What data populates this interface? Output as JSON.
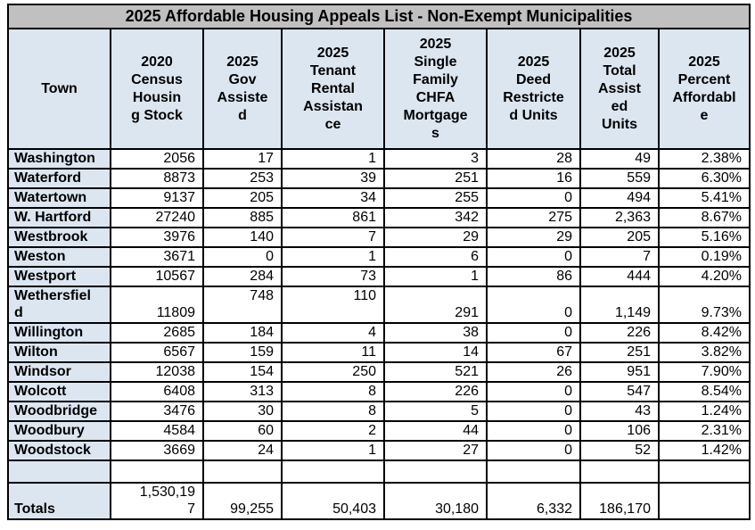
{
  "title": "2025 Affordable Housing Appeals List - Non-Exempt Municipalities",
  "table": {
    "columns": [
      {
        "label": "Town"
      },
      {
        "label": "2020\nCensus\nHousin\ng Stock"
      },
      {
        "label": "2025\nGov\nAssiste\nd"
      },
      {
        "label": "2025\nTenant\nRental\nAssistan\nce"
      },
      {
        "label": "2025\nSingle\nFamily\nCHFA\nMortgage\ns"
      },
      {
        "label": "2025\nDeed\nRestricte\nd Units"
      },
      {
        "label": "2025\nTotal\nAssist\ned\nUnits"
      },
      {
        "label": "2025\nPercent\nAffordabl\ne"
      }
    ],
    "rows": [
      {
        "town": "Washington",
        "values": [
          "2056",
          "17",
          "1",
          "3",
          "28",
          "49",
          "2.38%"
        ]
      },
      {
        "town": "Waterford",
        "values": [
          "8873",
          "253",
          "39",
          "251",
          "16",
          "559",
          "6.30%"
        ]
      },
      {
        "town": "Watertown",
        "values": [
          "9137",
          "205",
          "34",
          "255",
          "0",
          "494",
          "5.41%"
        ]
      },
      {
        "town": "W. Hartford",
        "values": [
          "27240",
          "885",
          "861",
          "342",
          "275",
          "2,363",
          "8.67%"
        ]
      },
      {
        "town": "Westbrook",
        "values": [
          "3976",
          "140",
          "7",
          "29",
          "29",
          "205",
          "5.16%"
        ]
      },
      {
        "town": "Weston",
        "values": [
          "3671",
          "0",
          "1",
          "6",
          "0",
          "7",
          "0.19%"
        ]
      },
      {
        "town": "Westport",
        "values": [
          "10567",
          "284",
          "73",
          "1",
          "86",
          "444",
          "4.20%"
        ]
      },
      {
        "town": "Wethersfiel\nd",
        "values": [
          "11809",
          "748",
          "110",
          "291",
          "0",
          "1,149",
          "9.73%"
        ]
      },
      {
        "town": "Willington",
        "values": [
          "2685",
          "184",
          "4",
          "38",
          "0",
          "226",
          "8.42%"
        ]
      },
      {
        "town": "Wilton",
        "values": [
          "6567",
          "159",
          "11",
          "14",
          "67",
          "251",
          "3.82%"
        ]
      },
      {
        "town": "Windsor",
        "values": [
          "12038",
          "154",
          "250",
          "521",
          "26",
          "951",
          "7.90%"
        ]
      },
      {
        "town": "Wolcott",
        "values": [
          "6408",
          "313",
          "8",
          "226",
          "0",
          "547",
          "8.54%"
        ]
      },
      {
        "town": "Woodbridge",
        "values": [
          "3476",
          "30",
          "8",
          "5",
          "0",
          "43",
          "1.24%"
        ]
      },
      {
        "town": "Woodbury",
        "values": [
          "4584",
          "60",
          "2",
          "44",
          "0",
          "106",
          "2.31%"
        ]
      },
      {
        "town": "Woodstock",
        "values": [
          "3669",
          "24",
          "1",
          "27",
          "0",
          "52",
          "1.42%"
        ]
      },
      {
        "town": "",
        "values": [
          "",
          "",
          "",
          "",
          "",
          "",
          ""
        ]
      }
    ],
    "totals": {
      "label": "Totals",
      "values": [
        "1,530,19\n7",
        "99,255",
        "50,403",
        "30,180",
        "6,332",
        "186,170",
        ""
      ]
    }
  }
}
